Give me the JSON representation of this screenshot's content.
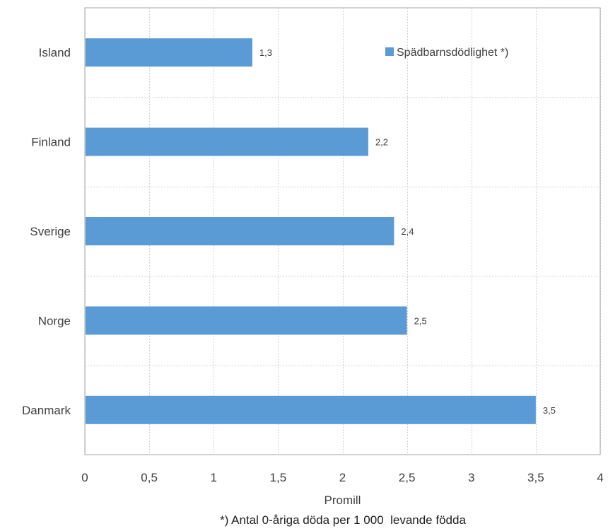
{
  "chart_data": {
    "type": "bar",
    "orientation": "horizontal",
    "categories": [
      "Island",
      "Finland",
      "Sverige",
      "Norge",
      "Danmark"
    ],
    "series": [
      {
        "name": "Spädbarnsdödlighet *)",
        "values": [
          1.3,
          2.2,
          2.4,
          2.5,
          3.5
        ],
        "data_labels": [
          "1,3",
          "2,2",
          "2,4",
          "2,5",
          "3,5"
        ],
        "color": "#5B9BD5"
      }
    ],
    "xlabel": "Promill",
    "xlim": [
      0,
      4
    ],
    "x_ticks": [
      0,
      0.5,
      1,
      1.5,
      2,
      2.5,
      3,
      3.5,
      4
    ],
    "x_tick_labels": [
      "0",
      "0,5",
      "1",
      "1,5",
      "2",
      "2,5",
      "3",
      "3,5",
      "4"
    ],
    "grid": true,
    "legend_position": "top-right",
    "footnote": "*) Antal 0-åriga döda per 1 000  levande födda"
  }
}
